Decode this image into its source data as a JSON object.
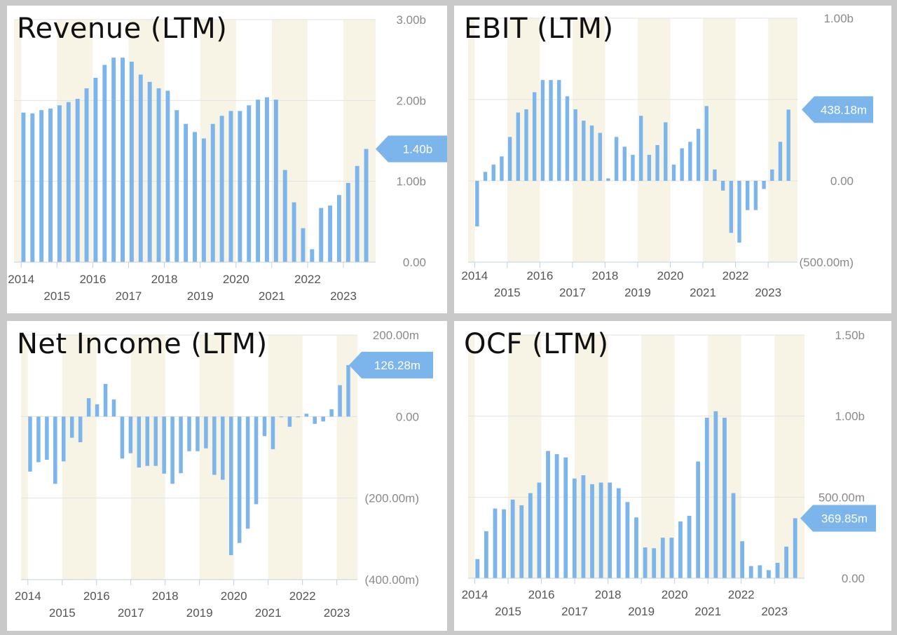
{
  "colors": {
    "bar": "#7cb5ec",
    "band": "#f7f4e6",
    "grid": "#e3e3e3",
    "axis": "#c0d0e0",
    "flag": "#7cb5ec",
    "background": "#ffffff"
  },
  "chart_data": [
    {
      "type": "bar",
      "title": "Revenue (LTM)",
      "unit": "billions USD",
      "ylim": [
        0,
        3
      ],
      "yticks": [
        3,
        2,
        1,
        0
      ],
      "ytick_labels": [
        "3.00b",
        "2.00b",
        "1.00b",
        "0.00"
      ],
      "x_start": 2013.8,
      "x_end": 2023.9,
      "year_labels_upper": [
        "2014",
        "2016",
        "2018",
        "2020",
        "2022"
      ],
      "year_labels_lower": [
        "2015",
        "2017",
        "2019",
        "2021",
        "2023"
      ],
      "values": [
        1.85,
        1.84,
        1.88,
        1.9,
        1.94,
        1.98,
        2.02,
        2.15,
        2.28,
        2.44,
        2.53,
        2.53,
        2.48,
        2.32,
        2.23,
        2.15,
        2.12,
        1.88,
        1.71,
        1.61,
        1.53,
        1.71,
        1.81,
        1.87,
        1.87,
        1.94,
        2.01,
        2.04,
        2.01,
        1.14,
        0.74,
        0.42,
        0.16,
        0.67,
        0.7,
        0.83,
        0.98,
        1.19,
        1.4
      ],
      "last_value_label": "1.40b",
      "last_value": 1.4,
      "grid": true
    },
    {
      "type": "bar",
      "title": "EBIT (LTM)",
      "unit": "millions USD",
      "ylim": [
        -500,
        1000
      ],
      "yticks": [
        1000,
        500,
        0,
        -500
      ],
      "ytick_labels": [
        "1.00b",
        "",
        "0.00",
        "(500.00m)"
      ],
      "x_start": 2013.8,
      "x_end": 2023.9,
      "year_labels_upper": [
        "2014",
        "2016",
        "2018",
        "2020",
        "2022"
      ],
      "year_labels_lower": [
        "2015",
        "2017",
        "2019",
        "2021",
        "2023"
      ],
      "values": [
        -280,
        55,
        100,
        150,
        270,
        420,
        440,
        545,
        620,
        620,
        620,
        520,
        440,
        370,
        340,
        295,
        15,
        270,
        210,
        160,
        400,
        160,
        220,
        360,
        100,
        200,
        240,
        320,
        460,
        70,
        -60,
        -320,
        -380,
        -180,
        -180,
        -50,
        70,
        240,
        438.18
      ],
      "last_value_label": "438.18m",
      "last_value": 438.18,
      "grid": true
    },
    {
      "type": "bar",
      "title": "Net Income (LTM)",
      "unit": "millions USD",
      "ylim": [
        -400,
        200
      ],
      "yticks": [
        200,
        0,
        -200,
        -400
      ],
      "ytick_labels": [
        "200.00m",
        "0.00",
        "(200.00m)",
        "(400.00m)"
      ],
      "x_start": 2013.8,
      "x_end": 2023.6,
      "year_labels_upper": [
        "2014",
        "2016",
        "2018",
        "2020",
        "2022"
      ],
      "year_labels_lower": [
        "2015",
        "2017",
        "2019",
        "2021",
        "2023"
      ],
      "values": [
        -135,
        -112,
        -106,
        -165,
        -110,
        -52,
        -63,
        45,
        30,
        80,
        42,
        -103,
        -90,
        -125,
        -121,
        -121,
        -140,
        -165,
        -139,
        -85,
        -85,
        -78,
        -143,
        -155,
        -340,
        -310,
        -275,
        -215,
        -48,
        -80,
        0,
        -25,
        0,
        7,
        -18,
        -12,
        18,
        77,
        126.28
      ],
      "last_value_label": "126.28m",
      "last_value": 126.28,
      "grid": true
    },
    {
      "type": "bar",
      "title": "OCF (LTM)",
      "unit": "millions USD",
      "ylim": [
        0,
        1500
      ],
      "yticks": [
        1500,
        1000,
        500,
        0
      ],
      "ytick_labels": [
        "1.50b",
        "1.00b",
        "500.00m",
        "0.00"
      ],
      "x_start": 2013.8,
      "x_end": 2023.9,
      "year_labels_upper": [
        "2014",
        "2016",
        "2018",
        "2020",
        "2022"
      ],
      "year_labels_lower": [
        "2015",
        "2017",
        "2019",
        "2021",
        "2023"
      ],
      "values": [
        118,
        290,
        430,
        425,
        485,
        450,
        525,
        590,
        785,
        765,
        745,
        615,
        635,
        580,
        590,
        590,
        555,
        470,
        375,
        190,
        185,
        250,
        250,
        350,
        385,
        720,
        990,
        1030,
        990,
        525,
        228,
        75,
        80,
        50,
        95,
        195,
        369.85
      ],
      "last_value_label": "369.85m",
      "last_value": 369.85,
      "grid": true
    }
  ]
}
